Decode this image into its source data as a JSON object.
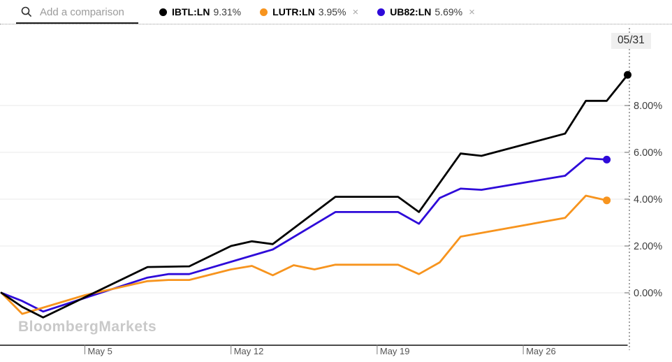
{
  "header": {
    "search_placeholder": "Add a comparison",
    "remove_icon": "×",
    "legend": [
      {
        "ticker": "IBTL:LN",
        "value": "9.31%",
        "color": "#000000",
        "removable": false
      },
      {
        "ticker": "LUTR:LN",
        "value": "3.95%",
        "color": "#f7941e",
        "removable": true
      },
      {
        "ticker": "UB82:LN",
        "value": "5.69%",
        "color": "#2e0ad9",
        "removable": true
      }
    ]
  },
  "chart_data": {
    "type": "line",
    "title": "",
    "xlabel": "",
    "ylabel": "",
    "grid": "horizontal",
    "cursor_date": "05/31",
    "x_axis": {
      "month": "May",
      "range_days": [
        1,
        31
      ],
      "ticks": [
        {
          "label": "May 5",
          "day": 5
        },
        {
          "label": "May 12",
          "day": 12
        },
        {
          "label": "May 19",
          "day": 19
        },
        {
          "label": "May 26",
          "day": 26
        }
      ]
    },
    "y_axis": {
      "unit": "%",
      "ylim": [
        -2.3,
        11.3
      ],
      "ticks": [
        {
          "label": "8.00%",
          "value": 8
        },
        {
          "label": "6.00%",
          "value": 6
        },
        {
          "label": "4.00%",
          "value": 4
        },
        {
          "label": "2.00%",
          "value": 2
        },
        {
          "label": "0.00%",
          "value": 0
        }
      ]
    },
    "series": [
      {
        "name": "IBTL:LN",
        "color": "#000000",
        "final_value_pct": 9.31,
        "points_day_pct": [
          [
            1,
            0
          ],
          [
            2,
            -0.6
          ],
          [
            3,
            -1.05
          ],
          [
            8,
            1.1
          ],
          [
            10,
            1.13
          ],
          [
            12,
            2.0
          ],
          [
            13,
            2.2
          ],
          [
            14,
            2.08
          ],
          [
            17,
            4.1
          ],
          [
            20,
            4.1
          ],
          [
            21,
            3.45
          ],
          [
            23,
            5.95
          ],
          [
            24,
            5.85
          ],
          [
            28,
            6.8
          ],
          [
            29,
            8.2
          ],
          [
            30,
            8.2
          ],
          [
            31,
            9.31
          ]
        ]
      },
      {
        "name": "LUTR:LN",
        "color": "#f7941e",
        "final_value_pct": 3.95,
        "points_day_pct": [
          [
            1,
            0
          ],
          [
            2,
            -0.9
          ],
          [
            5,
            -0.1
          ],
          [
            8,
            0.5
          ],
          [
            9,
            0.55
          ],
          [
            10,
            0.55
          ],
          [
            12,
            1.0
          ],
          [
            13,
            1.15
          ],
          [
            14,
            0.75
          ],
          [
            15,
            1.18
          ],
          [
            16,
            1.0
          ],
          [
            17,
            1.2
          ],
          [
            20,
            1.2
          ],
          [
            21,
            0.8
          ],
          [
            22,
            1.3
          ],
          [
            23,
            2.4
          ],
          [
            28,
            3.2
          ],
          [
            29,
            4.15
          ],
          [
            30,
            3.95
          ]
        ]
      },
      {
        "name": "UB82:LN",
        "color": "#2e0ad9",
        "final_value_pct": 5.69,
        "points_day_pct": [
          [
            1,
            0
          ],
          [
            2,
            -0.35
          ],
          [
            3,
            -0.8
          ],
          [
            8,
            0.65
          ],
          [
            9,
            0.8
          ],
          [
            10,
            0.8
          ],
          [
            14,
            1.85
          ],
          [
            17,
            3.45
          ],
          [
            20,
            3.45
          ],
          [
            21,
            2.95
          ],
          [
            22,
            4.05
          ],
          [
            23,
            4.45
          ],
          [
            24,
            4.4
          ],
          [
            28,
            5.0
          ],
          [
            29,
            5.75
          ],
          [
            30,
            5.69
          ]
        ]
      }
    ]
  },
  "watermark": "BloombergMarkets"
}
